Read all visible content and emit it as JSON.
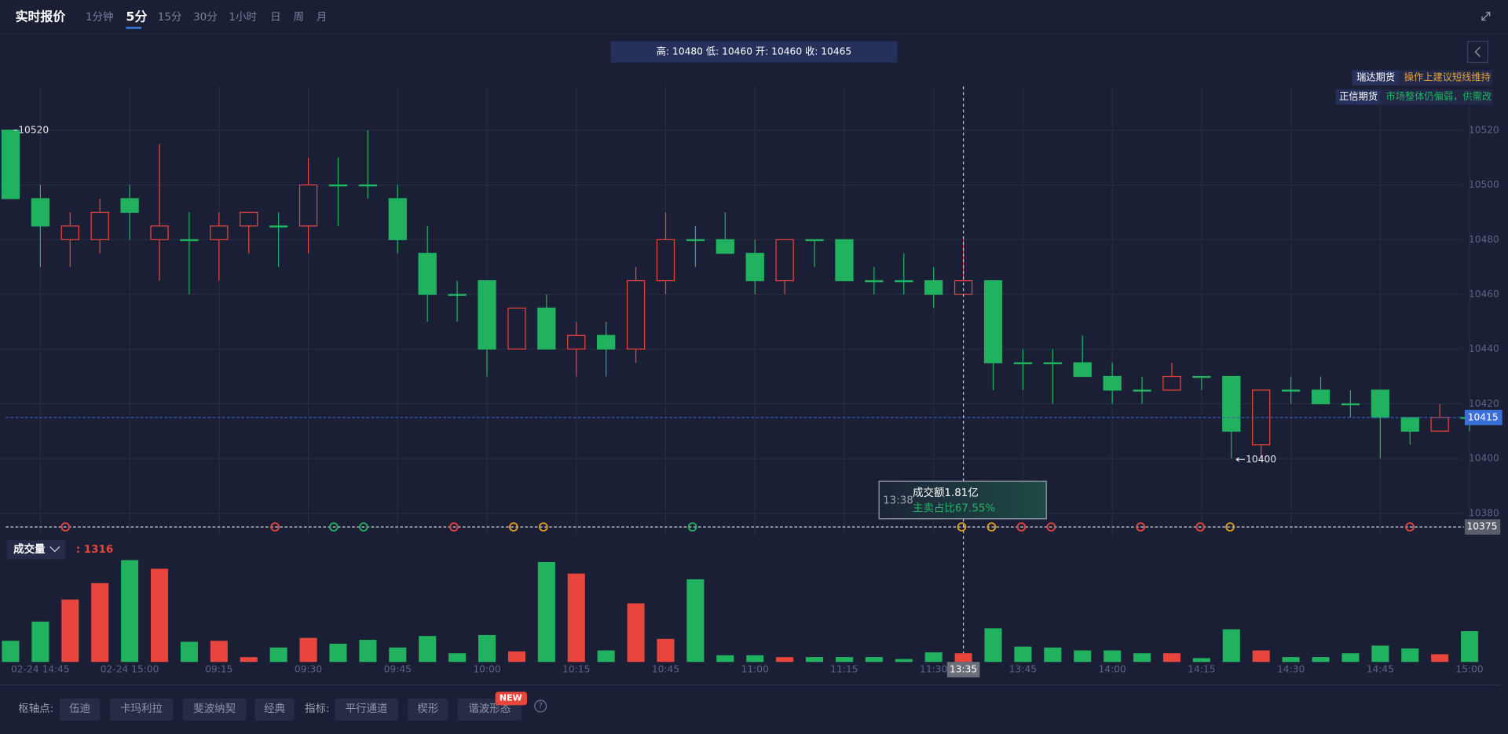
{
  "header": {
    "title": "实时报价",
    "tabs": [
      "1分钟",
      "5分",
      "15分",
      "30分",
      "1小时",
      "日",
      "周",
      "月"
    ],
    "active_tab": 1
  },
  "quote_bar": "高: 10480 低: 10460 开: 10460 收: 10465",
  "notes": [
    {
      "source": "瑞达期货",
      "text": "操作上建议短线维持",
      "color": "#e8a33c"
    },
    {
      "source": "正信期货",
      "text": "市场整体仍偏弱，供需改",
      "color": "#21b260"
    }
  ],
  "chart_data": {
    "type": "candlestick",
    "categories": [
      null,
      "02-24 14:45",
      null,
      null,
      "02-24 15:00",
      null,
      null,
      "09:15",
      null,
      null,
      "09:30",
      null,
      null,
      "09:45",
      null,
      null,
      "10:00",
      null,
      null,
      "10:15",
      null,
      null,
      "10:45",
      null,
      null,
      "11:00",
      null,
      null,
      "11:15",
      null,
      null,
      "11:30",
      "13:35",
      null,
      "13:45",
      null,
      null,
      "14:00",
      null,
      null,
      "14:15",
      null,
      null,
      "14:30",
      null,
      null,
      "14:45",
      null,
      null,
      "15:00"
    ],
    "open": [
      10520,
      10495,
      10480,
      10480,
      10495,
      10480,
      10480,
      10480,
      10485,
      10485,
      10485,
      10500,
      10500,
      10495,
      10475,
      10460,
      10465,
      10440,
      10455,
      10440,
      10445,
      10440,
      10465,
      10480,
      10480,
      10475,
      10465,
      10480,
      10480,
      10465,
      10465,
      10465,
      10460,
      10465,
      10435,
      10435,
      10435,
      10430,
      10425,
      10425,
      10430,
      10430,
      10405,
      10425,
      10425,
      10420,
      10425,
      10415,
      10410,
      10415
    ],
    "high": [
      10520,
      10500,
      10490,
      10495,
      10500,
      10515,
      10490,
      10490,
      10490,
      10490,
      10510,
      10510,
      10520,
      10500,
      10485,
      10465,
      10465,
      10455,
      10460,
      10450,
      10450,
      10470,
      10490,
      10485,
      10490,
      10480,
      10480,
      10480,
      10480,
      10470,
      10475,
      10470,
      10480,
      10465,
      10440,
      10440,
      10445,
      10435,
      10430,
      10435,
      10430,
      10430,
      10425,
      10430,
      10430,
      10425,
      10425,
      10415,
      10420,
      10415
    ],
    "low": [
      10495,
      10470,
      10470,
      10475,
      10480,
      10465,
      10460,
      10465,
      10475,
      10470,
      10475,
      10485,
      10495,
      10475,
      10450,
      10450,
      10430,
      10440,
      10440,
      10430,
      10430,
      10435,
      10460,
      10470,
      10475,
      10460,
      10460,
      10470,
      10465,
      10460,
      10460,
      10455,
      10460,
      10425,
      10425,
      10420,
      10430,
      10420,
      10420,
      10425,
      10425,
      10400,
      10400,
      10420,
      10420,
      10415,
      10400,
      10405,
      10410,
      10410
    ],
    "close": [
      10495,
      10485,
      10485,
      10490,
      10490,
      10485,
      10480,
      10485,
      10490,
      10485,
      10500,
      10500,
      10500,
      10480,
      10460,
      10460,
      10440,
      10455,
      10440,
      10445,
      10440,
      10465,
      10480,
      10480,
      10475,
      10465,
      10480,
      10480,
      10465,
      10465,
      10465,
      10460,
      10465,
      10435,
      10435,
      10435,
      10430,
      10425,
      10425,
      10430,
      10430,
      10410,
      10425,
      10425,
      10420,
      10420,
      10415,
      10410,
      10415,
      10415
    ],
    "up_color": "#e8453c",
    "down_color": "#21b260",
    "ylim": [
      10372,
      10536
    ],
    "yticks": [
      10380,
      10400,
      10420,
      10440,
      10460,
      10480,
      10500,
      10520
    ],
    "grid": true,
    "high_label": "10520",
    "low_label": "10400",
    "last_price": 10415,
    "crosshair_price": 10375,
    "crosshair_index": 32,
    "tooltip": {
      "time": "13:38",
      "amount": "成交额1.81亿",
      "sell_ratio": "主卖占比67.55%"
    },
    "volume": {
      "label": "成交量",
      "value_label": ": 1316",
      "values": [
        22,
        42,
        65,
        82,
        106,
        97,
        21,
        22,
        5,
        15,
        25,
        19,
        23,
        15,
        27,
        9,
        28,
        11,
        104,
        92,
        12,
        61,
        24,
        86,
        7,
        7,
        5,
        5,
        5,
        5,
        3,
        10,
        9,
        35,
        16,
        15,
        12,
        12,
        9,
        9,
        4,
        34,
        12,
        5,
        5,
        9,
        17,
        14,
        8,
        32
      ]
    }
  },
  "toolbar": {
    "pivot_label": "枢轴点:",
    "pivots": [
      "伍迪",
      "卡玛利拉",
      "斐波纳契",
      "经典"
    ],
    "indicator_label": "指标:",
    "indicators": [
      "平行通道",
      "楔形",
      "谐波形态"
    ],
    "badge": "NEW",
    "help": "?"
  }
}
